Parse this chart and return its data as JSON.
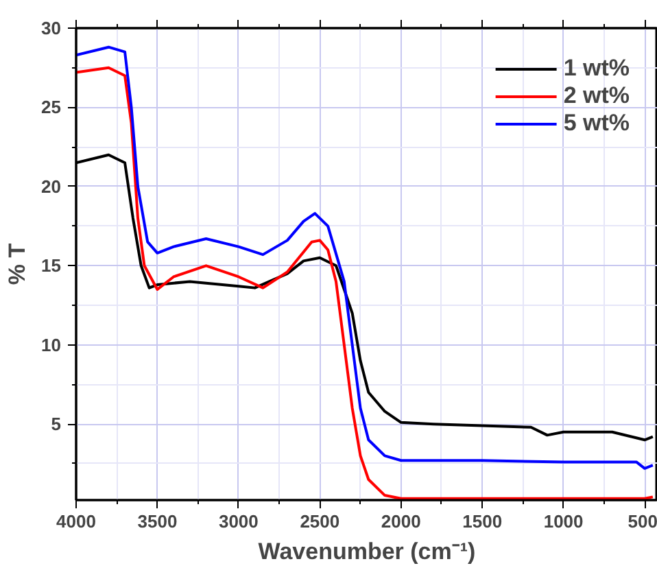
{
  "chart_data": {
    "type": "line",
    "xlabel": "Wavenumber (cm⁻¹)",
    "ylabel": "% T",
    "xlim": [
      4000,
      420
    ],
    "ylim": [
      0.2,
      30
    ],
    "xticks": [
      4000,
      3500,
      3000,
      2500,
      2000,
      1500,
      1000,
      500
    ],
    "yticks": [
      5,
      10,
      15,
      20,
      25,
      30
    ],
    "grid": true,
    "legend": "top right",
    "line_style": "solid",
    "marker": "none",
    "series": [
      {
        "name": "1 wt%",
        "color": "#000000",
        "x": [
          4000,
          3800,
          3700,
          3650,
          3600,
          3550,
          3500,
          3300,
          3000,
          2900,
          2700,
          2600,
          2500,
          2400,
          2300,
          2250,
          2200,
          2100,
          2000,
          1800,
          1500,
          1200,
          1100,
          1000,
          700,
          500,
          450
        ],
        "values": [
          21.5,
          22,
          21.5,
          18,
          15,
          13.6,
          13.8,
          14,
          13.7,
          13.6,
          14.5,
          15.3,
          15.5,
          15,
          12,
          9,
          7,
          5.8,
          5.1,
          5,
          4.9,
          4.8,
          4.3,
          4.5,
          4.5,
          4.0,
          4.2
        ]
      },
      {
        "name": "2 wt%",
        "color": "#ff0000",
        "x": [
          4000,
          3800,
          3700,
          3660,
          3620,
          3580,
          3500,
          3400,
          3200,
          3000,
          2850,
          2700,
          2550,
          2500,
          2450,
          2400,
          2350,
          2300,
          2250,
          2200,
          2100,
          2000,
          1500,
          500,
          450
        ],
        "values": [
          27.2,
          27.5,
          27,
          24,
          18,
          15,
          13.5,
          14.3,
          15.0,
          14.3,
          13.6,
          14.6,
          16.5,
          16.6,
          16,
          14,
          10,
          6,
          3,
          1.5,
          0.5,
          0.3,
          0.3,
          0.3,
          0.4
        ]
      },
      {
        "name": "5 wt%",
        "color": "#0000ff",
        "x": [
          4000,
          3800,
          3700,
          3660,
          3620,
          3560,
          3500,
          3400,
          3200,
          3000,
          2850,
          2700,
          2600,
          2530,
          2450,
          2350,
          2300,
          2250,
          2200,
          2100,
          2000,
          1500,
          1000,
          550,
          500,
          450
        ],
        "values": [
          28.3,
          28.8,
          28.5,
          25,
          20,
          16.5,
          15.8,
          16.2,
          16.7,
          16.2,
          15.7,
          16.6,
          17.8,
          18.3,
          17.5,
          14,
          10,
          6,
          4,
          3.0,
          2.7,
          2.7,
          2.6,
          2.6,
          2.2,
          2.4
        ]
      }
    ]
  }
}
